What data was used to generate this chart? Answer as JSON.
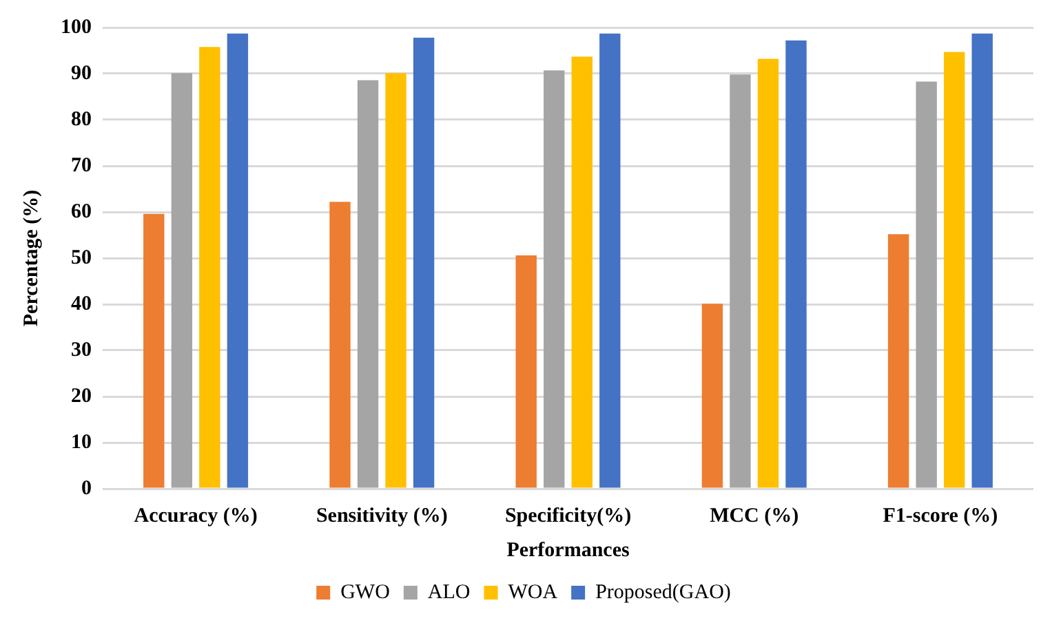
{
  "chart_data": {
    "type": "bar",
    "categories": [
      "Accuracy (%)",
      "Sensitivity (%)",
      "Specificity(%)",
      "MCC (%)",
      "F1-score (%)"
    ],
    "series": [
      {
        "name": "GWO",
        "color": "#ed7d31",
        "values": [
          59.6,
          62.2,
          50.6,
          40.1,
          55.2
        ]
      },
      {
        "name": "ALO",
        "color": "#a5a5a5",
        "values": [
          90.1,
          88.6,
          90.7,
          89.8,
          88.3
        ]
      },
      {
        "name": "WOA",
        "color": "#ffc000",
        "values": [
          95.8,
          90.1,
          93.7,
          93.2,
          94.7
        ]
      },
      {
        "name": "Proposed(GAO)",
        "color": "#4472c4",
        "values": [
          98.7,
          97.8,
          98.7,
          97.2,
          98.7
        ]
      }
    ],
    "xlabel": "Performances",
    "ylabel": "Percentage (%)",
    "ylim": [
      0,
      100
    ],
    "yticks": [
      0,
      10,
      20,
      30,
      40,
      50,
      60,
      70,
      80,
      90,
      100
    ],
    "grid": "y",
    "legend": "bottom"
  }
}
